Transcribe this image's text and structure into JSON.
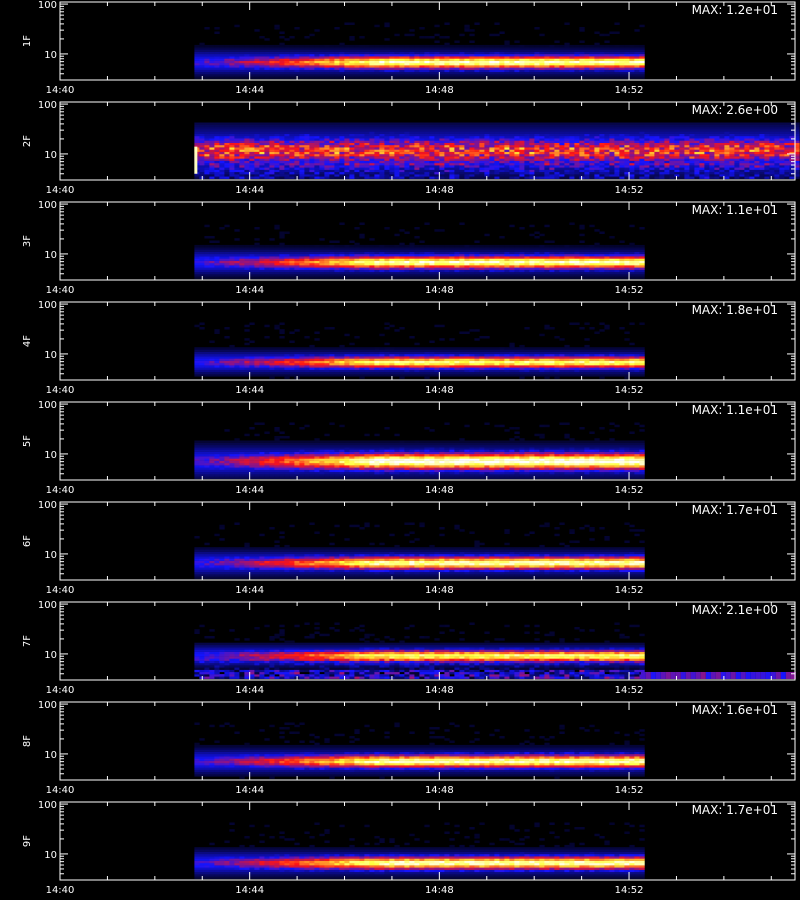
{
  "chart_data": {
    "type": "heatmap",
    "xlabel": "",
    "x_ticks": [
      "14:40",
      "14:44",
      "14:48",
      "14:52"
    ],
    "y_ticks": [
      "10",
      "100"
    ],
    "y_scale": "log",
    "x_range": [
      "14:40",
      "14:55:30"
    ],
    "y_range": [
      3,
      110
    ],
    "colormap": [
      "#000000",
      "#1010ff",
      "#ff1010",
      "#ffff40",
      "#ffffff"
    ],
    "panels": [
      {
        "label": "1F",
        "max_text": "MAX: 1.2e+01",
        "max": 12,
        "start": "14:42:50",
        "end": "14:52:15",
        "center": 6.5,
        "spread": 0.14,
        "peak": 0.95,
        "variant": "band"
      },
      {
        "label": "2F",
        "max_text": "MAX: 2.6e+00",
        "max": 2.6,
        "start": "14:42:50",
        "end": "14:55:30",
        "center": 11,
        "spread": 0.28,
        "peak": 0.55,
        "variant": "broad"
      },
      {
        "label": "3F",
        "max_text": "MAX: 1.1e+01",
        "max": 11,
        "start": "14:42:50",
        "end": "14:52:15",
        "center": 6.5,
        "spread": 0.14,
        "peak": 0.95,
        "variant": "band"
      },
      {
        "label": "4F",
        "max_text": "MAX: 1.8e+01",
        "max": 18,
        "start": "14:42:50",
        "end": "14:52:15",
        "center": 6.5,
        "spread": 0.13,
        "peak": 0.9,
        "variant": "band"
      },
      {
        "label": "5F",
        "max_text": "MAX: 1.1e+01",
        "max": 11,
        "start": "14:42:50",
        "end": "14:52:15",
        "center": 6.8,
        "spread": 0.18,
        "peak": 1.0,
        "variant": "band"
      },
      {
        "label": "6F",
        "max_text": "MAX: 1.7e+01",
        "max": 17,
        "start": "14:42:50",
        "end": "14:52:15",
        "center": 6.3,
        "spread": 0.14,
        "peak": 0.95,
        "variant": "band"
      },
      {
        "label": "7F",
        "max_text": "MAX: 2.1e+00",
        "max": 2.1,
        "start": "14:42:50",
        "end": "14:52:15",
        "center": 8.8,
        "spread": 0.12,
        "peak": 0.9,
        "variant": "noisy"
      },
      {
        "label": "8F",
        "max_text": "MAX: 1.6e+01",
        "max": 16,
        "start": "14:42:50",
        "end": "14:52:15",
        "center": 6.8,
        "spread": 0.14,
        "peak": 0.95,
        "variant": "band"
      },
      {
        "label": "9F",
        "max_text": "MAX: 1.7e+01",
        "max": 17,
        "start": "14:42:50",
        "end": "14:52:15",
        "center": 6.3,
        "spread": 0.14,
        "peak": 0.95,
        "variant": "band"
      }
    ]
  }
}
